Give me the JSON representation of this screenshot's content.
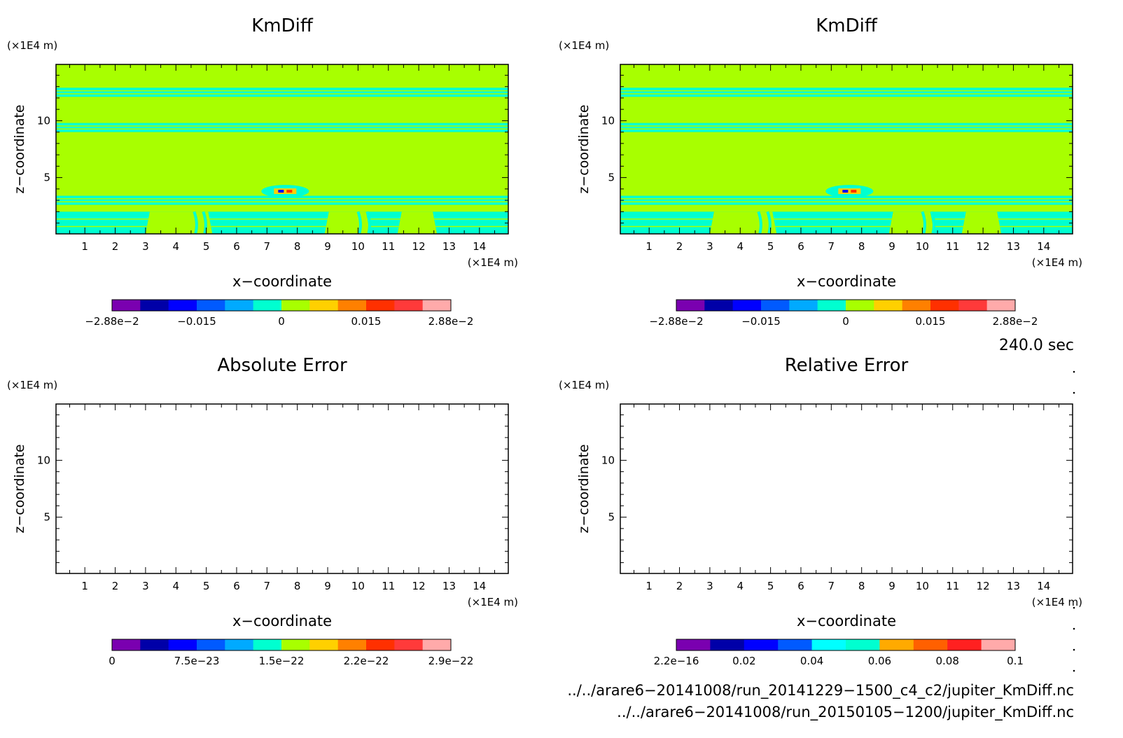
{
  "panels": [
    {
      "title": "KmDiff",
      "unit_y": "(×1E4 m)",
      "unit_x": "(×1E4 m)",
      "xlabel": "x−coordinate",
      "ylabel": "z−coordinate",
      "x_ticks": [
        "1",
        "2",
        "3",
        "4",
        "5",
        "6",
        "7",
        "8",
        "9",
        "10",
        "11",
        "12",
        "13",
        "14"
      ],
      "y_ticks": [
        "5",
        "10"
      ],
      "colorbar": {
        "colors": [
          "#7a00b0",
          "#0000a8",
          "#0000ff",
          "#005aff",
          "#00aaff",
          "#00ffd0",
          "#a8ff00",
          "#ffd000",
          "#ff8000",
          "#ff3000",
          "#ff3a3a",
          "#ffaaaa"
        ],
        "labels": [
          "−2.88e−2",
          "−0.015",
          "0",
          "0.015",
          "2.88e−2"
        ]
      }
    },
    {
      "title": "KmDiff",
      "unit_y": "(×1E4 m)",
      "unit_x": "(×1E4 m)",
      "xlabel": "x−coordinate",
      "ylabel": "z−coordinate",
      "x_ticks": [
        "1",
        "2",
        "3",
        "4",
        "5",
        "6",
        "7",
        "8",
        "9",
        "10",
        "11",
        "12",
        "13",
        "14"
      ],
      "y_ticks": [
        "5",
        "10"
      ],
      "colorbar": {
        "colors": [
          "#7a00b0",
          "#0000a8",
          "#0000ff",
          "#005aff",
          "#00aaff",
          "#00ffd0",
          "#a8ff00",
          "#ffd000",
          "#ff8000",
          "#ff3000",
          "#ff3a3a",
          "#ffaaaa"
        ],
        "labels": [
          "−2.88e−2",
          "−0.015",
          "0",
          "0.015",
          "2.88e−2"
        ]
      }
    },
    {
      "title": "Absolute Error",
      "unit_y": "(×1E4 m)",
      "unit_x": "(×1E4 m)",
      "xlabel": "x−coordinate",
      "ylabel": "z−coordinate",
      "x_ticks": [
        "1",
        "2",
        "3",
        "4",
        "5",
        "6",
        "7",
        "8",
        "9",
        "10",
        "11",
        "12",
        "13",
        "14"
      ],
      "y_ticks": [
        "5",
        "10"
      ],
      "colorbar": {
        "colors": [
          "#7a00b0",
          "#0000a8",
          "#0000ff",
          "#005aff",
          "#00aaff",
          "#00ffd0",
          "#a8ff00",
          "#ffd000",
          "#ff8000",
          "#ff3000",
          "#ff3a3a",
          "#ffaaaa"
        ],
        "labels": [
          "0",
          "7.5e−23",
          "1.5e−22",
          "2.2e−22",
          "2.9e−22"
        ]
      }
    },
    {
      "title": "Relative Error",
      "unit_y": "(×1E4 m)",
      "unit_x": "(×1E4 m)",
      "xlabel": "x−coordinate",
      "ylabel": "z−coordinate",
      "x_ticks": [
        "1",
        "2",
        "3",
        "4",
        "5",
        "6",
        "7",
        "8",
        "9",
        "10",
        "11",
        "12",
        "13",
        "14"
      ],
      "y_ticks": [
        "5",
        "10"
      ],
      "colorbar": {
        "colors": [
          "#7a00b0",
          "#0000a8",
          "#0000ff",
          "#005aff",
          "#00ffff",
          "#00ffd0",
          "#ffaa00",
          "#ff6000",
          "#ff2020",
          "#ffaaaa"
        ],
        "labels": [
          "2.2e−16",
          "0.02",
          "0.04",
          "0.06",
          "0.08",
          "0.1"
        ]
      }
    }
  ],
  "time_label": "240.0 sec",
  "file_paths": [
    "../../arare6−20141008/run_20141229−1500_c4_c2/jupiter_KmDiff.nc",
    "../../arare6−20141008/run_20150105−1200/jupiter_KmDiff.nc"
  ],
  "chart_data": [
    {
      "type": "heatmap",
      "title": "KmDiff",
      "xlabel": "x−coordinate",
      "ylabel": "z−coordinate",
      "x_unit": "(×1E4 m)",
      "y_unit": "(×1E4 m)",
      "xlim": [
        0.05,
        14.95
      ],
      "ylim": [
        0.05,
        14.95
      ],
      "color_levels": [
        -0.0288,
        -0.015,
        0,
        0.015,
        0.0288
      ],
      "dominant_value": 0.005,
      "features": [
        {
          "kind": "band",
          "z_range": [
            12.1,
            12.9
          ],
          "value": -0.003
        },
        {
          "kind": "band",
          "z_range": [
            9.0,
            9.8
          ],
          "value": -0.003
        },
        {
          "kind": "band",
          "z_range": [
            2.6,
            3.4
          ],
          "value": -0.003
        },
        {
          "kind": "band",
          "z_range": [
            0.05,
            2.0
          ],
          "value": -0.003
        },
        {
          "kind": "anomaly",
          "x": 7.6,
          "z": 3.8,
          "value_range": [
            -0.0288,
            0.0288
          ]
        }
      ]
    },
    {
      "type": "heatmap",
      "title": "KmDiff",
      "xlabel": "x−coordinate",
      "ylabel": "z−coordinate",
      "x_unit": "(×1E4 m)",
      "y_unit": "(×1E4 m)",
      "xlim": [
        0.05,
        14.95
      ],
      "ylim": [
        0.05,
        14.95
      ],
      "color_levels": [
        -0.0288,
        -0.015,
        0,
        0.015,
        0.0288
      ],
      "dominant_value": 0.005,
      "features": [
        {
          "kind": "band",
          "z_range": [
            12.1,
            12.9
          ],
          "value": -0.003
        },
        {
          "kind": "band",
          "z_range": [
            9.0,
            9.8
          ],
          "value": -0.003
        },
        {
          "kind": "band",
          "z_range": [
            2.6,
            3.4
          ],
          "value": -0.003
        },
        {
          "kind": "band",
          "z_range": [
            0.05,
            2.0
          ],
          "value": -0.003
        },
        {
          "kind": "anomaly",
          "x": 7.6,
          "z": 3.8,
          "value_range": [
            -0.0288,
            0.0288
          ]
        }
      ]
    },
    {
      "type": "heatmap",
      "title": "Absolute Error",
      "xlabel": "x−coordinate",
      "ylabel": "z−coordinate",
      "x_unit": "(×1E4 m)",
      "y_unit": "(×1E4 m)",
      "xlim": [
        0.05,
        14.95
      ],
      "ylim": [
        0.05,
        14.95
      ],
      "color_levels": [
        0,
        7.5e-23,
        1.5e-22,
        2.2e-22,
        2.9e-22
      ],
      "values": "blank"
    },
    {
      "type": "heatmap",
      "title": "Relative Error",
      "xlabel": "x−coordinate",
      "ylabel": "z−coordinate",
      "x_unit": "(×1E4 m)",
      "y_unit": "(×1E4 m)",
      "xlim": [
        0.05,
        14.95
      ],
      "ylim": [
        0.05,
        14.95
      ],
      "color_levels": [
        2.2e-16,
        0.02,
        0.04,
        0.06,
        0.08,
        0.1
      ],
      "values": "blank"
    }
  ]
}
